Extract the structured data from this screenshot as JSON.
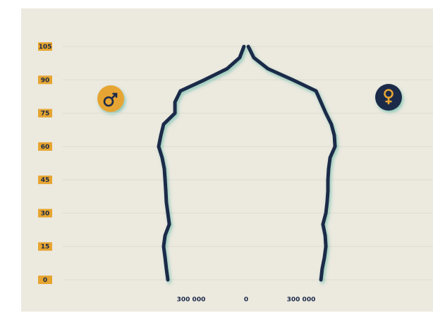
{
  "chart_data": {
    "type": "line",
    "y": [
      0,
      5,
      10,
      15,
      20,
      25,
      30,
      35,
      40,
      45,
      50,
      55,
      60,
      65,
      70,
      75,
      80,
      85,
      90,
      95,
      100,
      105
    ],
    "series": [
      {
        "color": "#1b2a48",
        "values": [
          -427000,
          -435000,
          -442000,
          -450000,
          -442000,
          -419000,
          -427000,
          -435000,
          -438000,
          -442000,
          -446000,
          -458000,
          -477000,
          -465000,
          -450000,
          -388000,
          -388000,
          -358000,
          -227000,
          -104000,
          -35000,
          -12000
        ]
      },
      {
        "color": "#1b2a48",
        "values": [
          408000,
          415000,
          427000,
          435000,
          431000,
          419000,
          435000,
          442000,
          446000,
          446000,
          450000,
          458000,
          485000,
          481000,
          465000,
          435000,
          408000,
          381000,
          254000,
          119000,
          42000,
          12000
        ]
      }
    ],
    "xlim": [
      -1000000,
      1000000
    ],
    "xticks": [
      {
        "value": -300000,
        "label": "300 000"
      },
      0,
      {
        "value": 300000,
        "label": "300 000"
      }
    ],
    "ylim": [
      0,
      105
    ],
    "yticks": [
      0,
      15,
      30,
      45,
      60,
      75,
      90,
      105
    ],
    "grid": true
  }
}
